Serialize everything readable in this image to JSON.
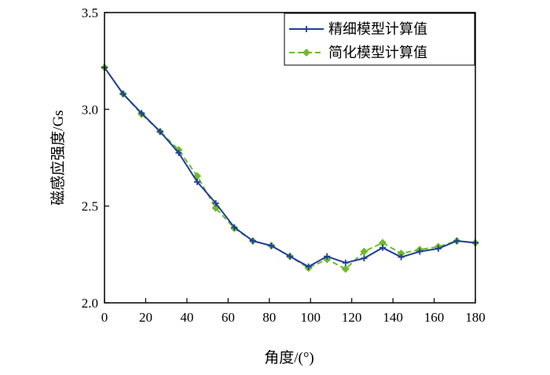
{
  "chart_data": {
    "type": "line",
    "title": "",
    "xlabel": "角度/(°)",
    "ylabel": "磁感应强度/Gs",
    "xlim": [
      0,
      180
    ],
    "ylim": [
      2.0,
      3.5
    ],
    "xticks": [
      0,
      20,
      40,
      60,
      80,
      100,
      120,
      140,
      160,
      180
    ],
    "yticks": [
      2.0,
      2.5,
      3.0,
      3.5
    ],
    "xtick_labels": [
      "0",
      "20",
      "40",
      "60",
      "80",
      "100",
      "120",
      "140",
      "160",
      "180"
    ],
    "ytick_labels": [
      "2.0",
      "2.5",
      "3.0",
      "3.5"
    ],
    "grid": false,
    "legend_position": "top-right",
    "x": [
      0,
      9,
      18,
      27,
      36,
      45,
      54,
      63,
      72,
      81,
      90,
      99,
      108,
      117,
      126,
      135,
      144,
      153,
      162,
      171,
      180
    ],
    "series": [
      {
        "name": "精细模型计算值",
        "color": "#1f3f99",
        "style": "solid",
        "marker": "plus",
        "values": [
          3.216,
          3.08,
          2.98,
          2.885,
          2.775,
          2.625,
          2.515,
          2.39,
          2.32,
          2.295,
          2.24,
          2.187,
          2.24,
          2.207,
          2.23,
          2.285,
          2.236,
          2.265,
          2.28,
          2.32,
          2.31
        ]
      },
      {
        "name": "简化模型计算值",
        "color": "#6fba2c",
        "style": "dashed",
        "marker": "diamond",
        "values": [
          3.216,
          3.08,
          2.975,
          2.885,
          2.79,
          2.655,
          2.49,
          2.385,
          2.32,
          2.295,
          2.24,
          2.18,
          2.225,
          2.175,
          2.265,
          2.31,
          2.255,
          2.275,
          2.29,
          2.32,
          2.31
        ]
      }
    ]
  }
}
